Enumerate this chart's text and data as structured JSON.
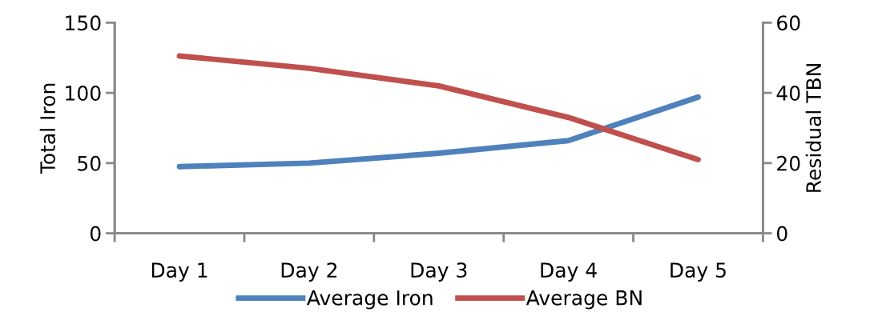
{
  "chart_data": {
    "type": "line",
    "categories": [
      "Day 1",
      "Day 2",
      "Day 3",
      "Day 4",
      "Day 5"
    ],
    "ylabel": "Total Iron",
    "y2label": "Residual TBN",
    "ylim": [
      0,
      150
    ],
    "yticks": [
      0,
      50,
      100,
      150
    ],
    "y2lim": [
      0,
      60
    ],
    "y2ticks": [
      0,
      20,
      40,
      60
    ],
    "legend": "bottom",
    "grid": false,
    "series": [
      {
        "name": "Average Iron",
        "color": "#4f81bd",
        "values": [
          47.5,
          50,
          57,
          66,
          97
        ]
      },
      {
        "name": "Average BN",
        "color": "#c0504d",
        "axis": "y2",
        "values": [
          50.5,
          47,
          42,
          33,
          21
        ]
      }
    ]
  }
}
